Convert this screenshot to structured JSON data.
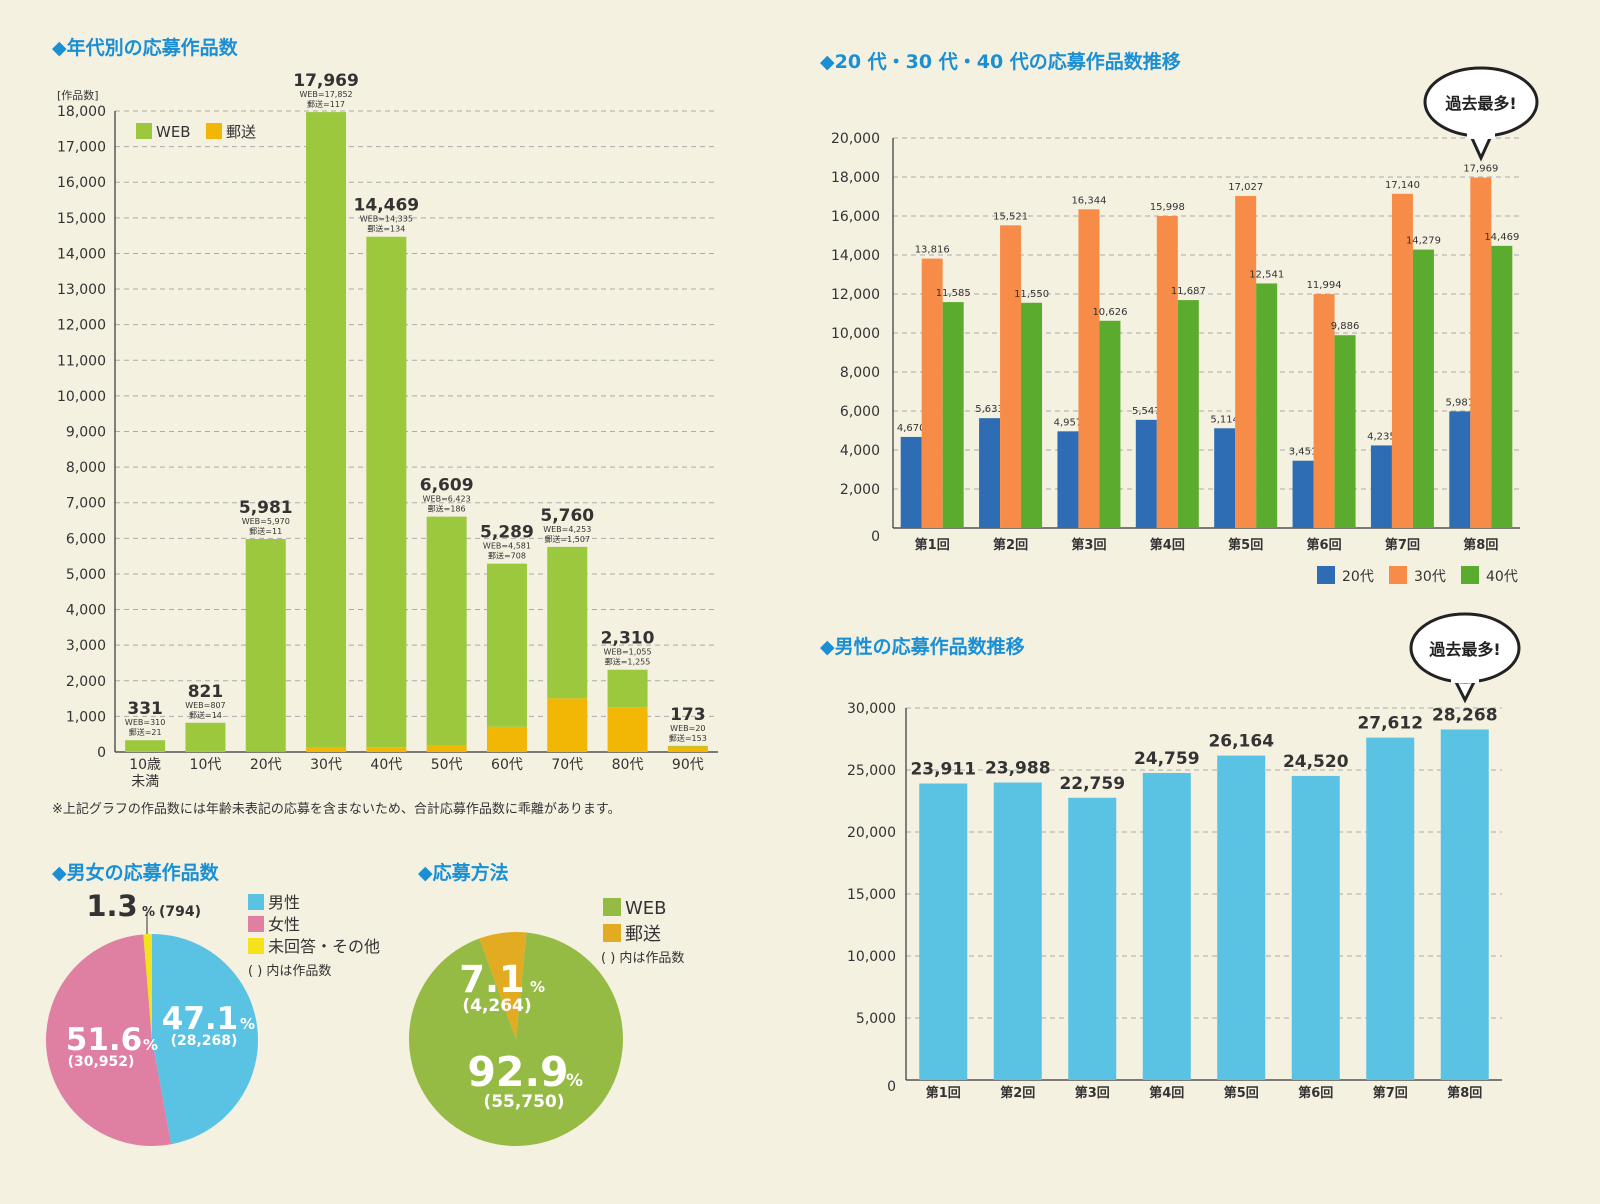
{
  "colors": {
    "background": "#f4f1e1",
    "heading": "#1a8fd4",
    "text": "#333333",
    "web": "#9cc83e",
    "mail": "#f2b705",
    "age20": "#2e6db3",
    "age30": "#f78c48",
    "age40": "#5aab2e",
    "male": "#5ac3e3",
    "female": "#df7fa1",
    "other": "#f4e31a",
    "method_web": "#95bb44",
    "method_mail": "#e3ab22",
    "bubble": "#ffffff",
    "grid": "#aaaaaa"
  },
  "sections": {
    "age_chart_title": "◆年代別の応募作品数",
    "age_note": "※上記グラフの作品数には年齢未表記の応募を含まないため、合計応募作品数に乖離があります。",
    "trend_title": "◆20 代・30 代・40 代の応募作品数推移",
    "male_title": "◆男性の応募作品数推移",
    "gender_title": "◆男女の応募作品数",
    "method_title": "◆応募方法",
    "bubble_label": "過去最多!"
  },
  "chart_data": [
    {
      "type": "bar",
      "stacked": true,
      "title": "年代別の応募作品数",
      "ylabel": "[作品数]",
      "ylim": [
        0,
        18000
      ],
      "ytick_step": 1000,
      "categories": [
        "10歳\n未満",
        "10代",
        "20代",
        "30代",
        "40代",
        "50代",
        "60代",
        "70代",
        "80代",
        "90代"
      ],
      "series": [
        {
          "name": "WEB",
          "values": [
            310,
            807,
            5970,
            17852,
            14335,
            6423,
            4581,
            4253,
            1055,
            20
          ]
        },
        {
          "name": "郵送",
          "values": [
            21,
            14,
            11,
            117,
            134,
            186,
            708,
            1507,
            1255,
            153
          ]
        }
      ],
      "totals": [
        331,
        821,
        5981,
        17969,
        14469,
        6609,
        5289,
        5760,
        2310,
        173
      ],
      "total_labels": [
        "331",
        "821",
        "5,981",
        "17,969",
        "14,469",
        "6,609",
        "5,289",
        "5,760",
        "2,310",
        "173"
      ],
      "web_labels": [
        "WEB=310",
        "WEB=807",
        "WEB=5,970",
        "WEB=17,852",
        "WEB=14,335",
        "WEB=6,423",
        "WEB=4,581",
        "WEB=4,253",
        "WEB=1,055",
        "WEB=20"
      ],
      "mail_labels": [
        "郵送=21",
        "郵送=14",
        "郵送=11",
        "郵送=117",
        "郵送=134",
        "郵送=186",
        "郵送=708",
        "郵送=1,507",
        "郵送=1,255",
        "郵送=153"
      ],
      "legend": [
        "WEB",
        "郵送"
      ],
      "legend_position": "top-left",
      "grid": true
    },
    {
      "type": "bar",
      "title": "20 代・30 代・40 代の応募作品数推移",
      "ylim": [
        0,
        20000
      ],
      "ytick_step": 2000,
      "categories": [
        "第1回",
        "第2回",
        "第3回",
        "第4回",
        "第5回",
        "第6回",
        "第7回",
        "第8回"
      ],
      "series": [
        {
          "name": "20代",
          "values": [
            4670,
            5633,
            4957,
            5547,
            5114,
            3451,
            4235,
            5981
          ],
          "labels": [
            "4,670",
            "5,633",
            "4,957",
            "5,547",
            "5,114",
            "3,451",
            "4,235",
            "5,981"
          ]
        },
        {
          "name": "30代",
          "values": [
            13816,
            15521,
            16344,
            15998,
            17027,
            11994,
            17140,
            17969
          ],
          "labels": [
            "13,816",
            "15,521",
            "16,344",
            "15,998",
            "17,027",
            "11,994",
            "17,140",
            "17,969"
          ]
        },
        {
          "name": "40代",
          "values": [
            11585,
            11550,
            10626,
            11687,
            12541,
            9886,
            14279,
            14469
          ],
          "labels": [
            "11,585",
            "11,550",
            "10,626",
            "11,687",
            "12,541",
            "9,886",
            "14,279",
            "14,469"
          ]
        }
      ],
      "legend_position": "bottom-right",
      "grid": true
    },
    {
      "type": "bar",
      "title": "男性の応募作品数推移",
      "ylim": [
        0,
        30000
      ],
      "ytick_step": 5000,
      "categories": [
        "第1回",
        "第2回",
        "第3回",
        "第4回",
        "第5回",
        "第6回",
        "第7回",
        "第8回"
      ],
      "values": [
        23911,
        23988,
        22759,
        24759,
        26164,
        24520,
        27612,
        28268
      ],
      "labels": [
        "23,911",
        "23,988",
        "22,759",
        "24,759",
        "26,164",
        "24,520",
        "27,612",
        "28,268"
      ],
      "grid": true
    },
    {
      "type": "pie",
      "title": "男女の応募作品数",
      "slices": [
        {
          "name": "男性",
          "value": 47.1,
          "count": 28268,
          "pct_label": "47.1",
          "count_label": "(28,268)"
        },
        {
          "name": "女性",
          "value": 51.6,
          "count": 30952,
          "pct_label": "51.6",
          "count_label": "(30,952)"
        },
        {
          "name": "未回答・その他",
          "value": 1.3,
          "count": 794,
          "pct_label": "1.3",
          "count_label": "(794)"
        }
      ],
      "note": "( ) 内は作品数"
    },
    {
      "type": "pie",
      "title": "応募方法",
      "slices": [
        {
          "name": "WEB",
          "value": 92.9,
          "count": 55750,
          "pct_label": "92.9",
          "count_label": "(55,750)"
        },
        {
          "name": "郵送",
          "value": 7.1,
          "count": 4264,
          "pct_label": "7.1",
          "count_label": "(4,264)"
        }
      ],
      "note": "( ) 内は作品数"
    }
  ]
}
